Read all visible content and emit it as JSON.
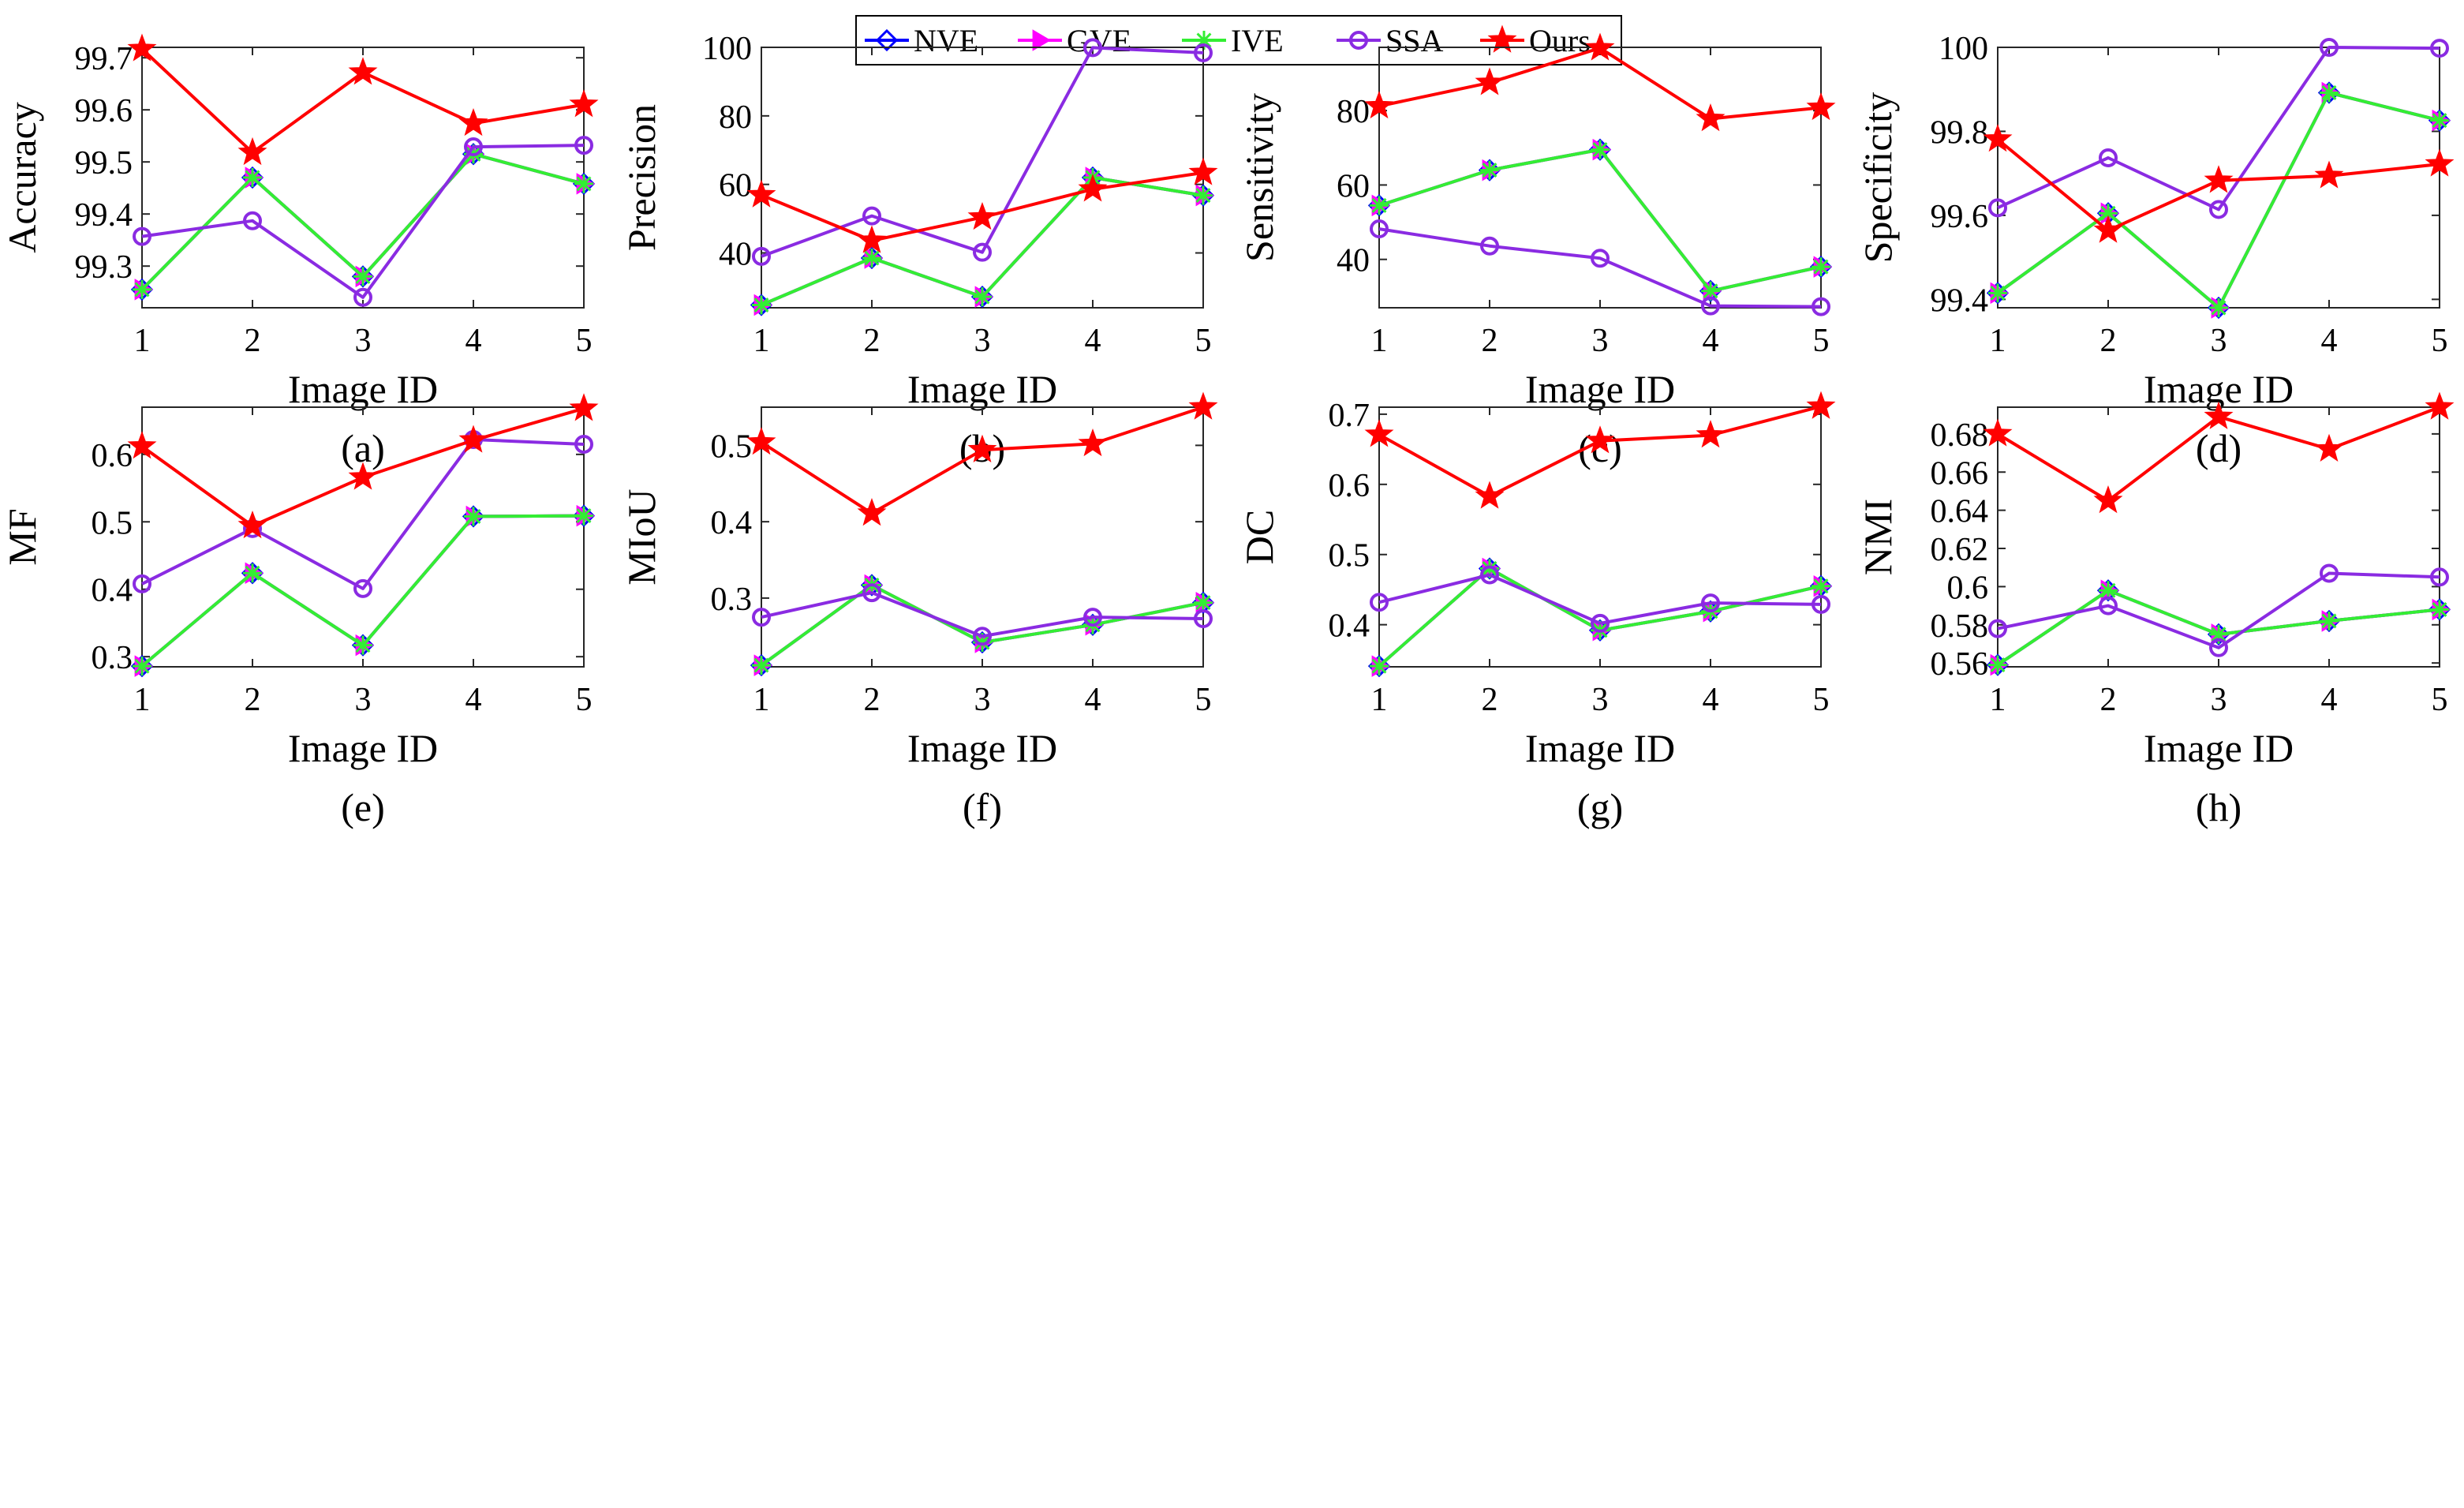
{
  "legend": {
    "entries": [
      {
        "name": "NVE",
        "color": "#0000ff",
        "marker": "diamond"
      },
      {
        "name": "GVE",
        "color": "#ff00ff",
        "marker": "triangle-right"
      },
      {
        "name": "IVE",
        "color": "#33ee33",
        "marker": "asterisk"
      },
      {
        "name": "SSA",
        "color": "#8a2be2",
        "marker": "circle"
      },
      {
        "name": "Ours",
        "color": "#ff0000",
        "marker": "star"
      }
    ]
  },
  "chart_data": [
    {
      "type": "line",
      "caption": "(a)",
      "xlabel": "Image ID",
      "ylabel": "Accuracy",
      "x": [
        1,
        2,
        3,
        4,
        5
      ],
      "xlim": [
        1,
        5
      ],
      "ylim": [
        99.22,
        99.72
      ],
      "yticks": [
        99.3,
        99.4,
        99.5,
        99.6,
        99.7
      ],
      "ytick_labels": [
        "99.3",
        "99.4",
        "99.5",
        "99.6",
        "99.7"
      ],
      "series": [
        {
          "name": "NVE",
          "values": [
            99.255,
            99.47,
            99.28,
            99.515,
            99.458
          ]
        },
        {
          "name": "GVE",
          "values": [
            99.255,
            99.47,
            99.28,
            99.515,
            99.458
          ]
        },
        {
          "name": "IVE",
          "values": [
            99.255,
            99.47,
            99.28,
            99.515,
            99.458
          ]
        },
        {
          "name": "SSA",
          "values": [
            99.357,
            99.387,
            99.24,
            99.529,
            99.532
          ]
        },
        {
          "name": "Ours",
          "values": [
            99.717,
            99.518,
            99.672,
            99.574,
            99.61
          ]
        }
      ]
    },
    {
      "type": "line",
      "caption": "(b)",
      "xlabel": "Image ID",
      "ylabel": "Precision",
      "x": [
        1,
        2,
        3,
        4,
        5
      ],
      "xlim": [
        1,
        5
      ],
      "ylim": [
        24,
        100
      ],
      "yticks": [
        40,
        60,
        80,
        100
      ],
      "ytick_labels": [
        "40",
        "60",
        "80",
        "100"
      ],
      "series": [
        {
          "name": "NVE",
          "values": [
            24.8,
            38.5,
            27.2,
            62.0,
            56.8
          ]
        },
        {
          "name": "GVE",
          "values": [
            24.8,
            38.5,
            27.2,
            62.0,
            56.8
          ]
        },
        {
          "name": "IVE",
          "values": [
            24.8,
            38.5,
            27.2,
            62.0,
            56.8
          ]
        },
        {
          "name": "SSA",
          "values": [
            39.0,
            50.8,
            40.2,
            99.9,
            98.4
          ]
        },
        {
          "name": "Ours",
          "values": [
            56.9,
            43.6,
            50.4,
            58.6,
            63.4
          ]
        }
      ]
    },
    {
      "type": "line",
      "caption": "(c)",
      "xlabel": "Image ID",
      "ylabel": "Sensitivity",
      "x": [
        1,
        2,
        3,
        4,
        5
      ],
      "xlim": [
        1,
        5
      ],
      "ylim": [
        27,
        97
      ],
      "yticks": [
        40,
        60,
        80
      ],
      "ytick_labels": [
        "40",
        "60",
        "80"
      ],
      "series": [
        {
          "name": "NVE",
          "values": [
            54.5,
            64.0,
            69.5,
            31.5,
            38.0
          ]
        },
        {
          "name": "GVE",
          "values": [
            54.5,
            64.0,
            69.5,
            31.5,
            38.0
          ]
        },
        {
          "name": "IVE",
          "values": [
            54.5,
            64.0,
            69.5,
            31.5,
            38.0
          ]
        },
        {
          "name": "SSA",
          "values": [
            48.2,
            43.6,
            40.3,
            27.5,
            27.3
          ]
        },
        {
          "name": "Ours",
          "values": [
            81.2,
            87.5,
            96.8,
            77.8,
            80.8
          ]
        }
      ]
    },
    {
      "type": "line",
      "caption": "(d)",
      "xlabel": "Image ID",
      "ylabel": "Specificity",
      "x": [
        1,
        2,
        3,
        4,
        5
      ],
      "xlim": [
        1,
        5
      ],
      "ylim": [
        99.38,
        100
      ],
      "yticks": [
        99.4,
        99.6,
        99.8,
        100
      ],
      "ytick_labels": [
        "99.4",
        "99.6",
        "99.8",
        "100"
      ],
      "series": [
        {
          "name": "NVE",
          "values": [
            99.415,
            99.605,
            99.38,
            99.892,
            99.826
          ]
        },
        {
          "name": "GVE",
          "values": [
            99.415,
            99.605,
            99.38,
            99.892,
            99.826
          ]
        },
        {
          "name": "IVE",
          "values": [
            99.415,
            99.605,
            99.38,
            99.892,
            99.826
          ]
        },
        {
          "name": "SSA",
          "values": [
            99.618,
            99.737,
            99.614,
            100.0,
            99.998
          ]
        },
        {
          "name": "Ours",
          "values": [
            99.781,
            99.564,
            99.683,
            99.694,
            99.722
          ]
        }
      ]
    },
    {
      "type": "line",
      "caption": "(e)",
      "xlabel": "Image ID",
      "ylabel": "MF",
      "x": [
        1,
        2,
        3,
        4,
        5
      ],
      "xlim": [
        1,
        5
      ],
      "ylim": [
        0.285,
        0.67
      ],
      "yticks": [
        0.3,
        0.4,
        0.5,
        0.6
      ],
      "ytick_labels": [
        "0.3",
        "0.4",
        "0.5",
        "0.6"
      ],
      "series": [
        {
          "name": "NVE",
          "values": [
            0.286,
            0.424,
            0.317,
            0.508,
            0.509
          ]
        },
        {
          "name": "GVE",
          "values": [
            0.286,
            0.424,
            0.317,
            0.508,
            0.509
          ]
        },
        {
          "name": "IVE",
          "values": [
            0.286,
            0.424,
            0.317,
            0.508,
            0.509
          ]
        },
        {
          "name": "SSA",
          "values": [
            0.408,
            0.49,
            0.401,
            0.622,
            0.615
          ]
        },
        {
          "name": "Ours",
          "values": [
            0.612,
            0.494,
            0.566,
            0.621,
            0.668
          ]
        }
      ]
    },
    {
      "type": "line",
      "caption": "(f)",
      "xlabel": "Image ID",
      "ylabel": "MIoU",
      "x": [
        1,
        2,
        3,
        4,
        5
      ],
      "xlim": [
        1,
        5
      ],
      "ylim": [
        0.21,
        0.55
      ],
      "yticks": [
        0.3,
        0.4,
        0.5
      ],
      "ytick_labels": [
        "0.3",
        "0.4",
        "0.5"
      ],
      "series": [
        {
          "name": "NVE",
          "values": [
            0.212,
            0.317,
            0.242,
            0.265,
            0.294
          ]
        },
        {
          "name": "GVE",
          "values": [
            0.212,
            0.317,
            0.242,
            0.265,
            0.294
          ]
        },
        {
          "name": "IVE",
          "values": [
            0.212,
            0.317,
            0.242,
            0.265,
            0.294
          ]
        },
        {
          "name": "SSA",
          "values": [
            0.275,
            0.307,
            0.25,
            0.275,
            0.273
          ]
        },
        {
          "name": "Ours",
          "values": [
            0.504,
            0.411,
            0.494,
            0.502,
            0.55
          ]
        }
      ]
    },
    {
      "type": "line",
      "caption": "(g)",
      "xlabel": "Image ID",
      "ylabel": "DC",
      "x": [
        1,
        2,
        3,
        4,
        5
      ],
      "xlim": [
        1,
        5
      ],
      "ylim": [
        0.34,
        0.71
      ],
      "yticks": [
        0.4,
        0.5,
        0.6,
        0.7
      ],
      "ytick_labels": [
        "0.4",
        "0.5",
        "0.6",
        "0.7"
      ],
      "series": [
        {
          "name": "NVE",
          "values": [
            0.341,
            0.48,
            0.392,
            0.419,
            0.455
          ]
        },
        {
          "name": "GVE",
          "values": [
            0.341,
            0.48,
            0.392,
            0.419,
            0.455
          ]
        },
        {
          "name": "IVE",
          "values": [
            0.341,
            0.48,
            0.392,
            0.419,
            0.455
          ]
        },
        {
          "name": "SSA",
          "values": [
            0.432,
            0.471,
            0.402,
            0.431,
            0.429
          ]
        },
        {
          "name": "Ours",
          "values": [
            0.671,
            0.583,
            0.662,
            0.67,
            0.711
          ]
        }
      ]
    },
    {
      "type": "line",
      "caption": "(h)",
      "xlabel": "Image ID",
      "ylabel": "NMI",
      "x": [
        1,
        2,
        3,
        4,
        5
      ],
      "xlim": [
        1,
        5
      ],
      "ylim": [
        0.558,
        0.694
      ],
      "yticks": [
        0.56,
        0.58,
        0.6,
        0.62,
        0.64,
        0.66,
        0.68
      ],
      "ytick_labels": [
        "0.56",
        "0.58",
        "0.6",
        "0.62",
        "0.64",
        "0.66",
        "0.68"
      ],
      "series": [
        {
          "name": "NVE",
          "values": [
            0.559,
            0.598,
            0.575,
            0.582,
            0.588
          ]
        },
        {
          "name": "GVE",
          "values": [
            0.559,
            0.598,
            0.575,
            0.582,
            0.588
          ]
        },
        {
          "name": "IVE",
          "values": [
            0.559,
            0.598,
            0.575,
            0.582,
            0.588
          ]
        },
        {
          "name": "SSA",
          "values": [
            0.578,
            0.59,
            0.568,
            0.607,
            0.605
          ]
        },
        {
          "name": "Ours",
          "values": [
            0.68,
            0.645,
            0.689,
            0.672,
            0.694
          ]
        }
      ]
    }
  ]
}
